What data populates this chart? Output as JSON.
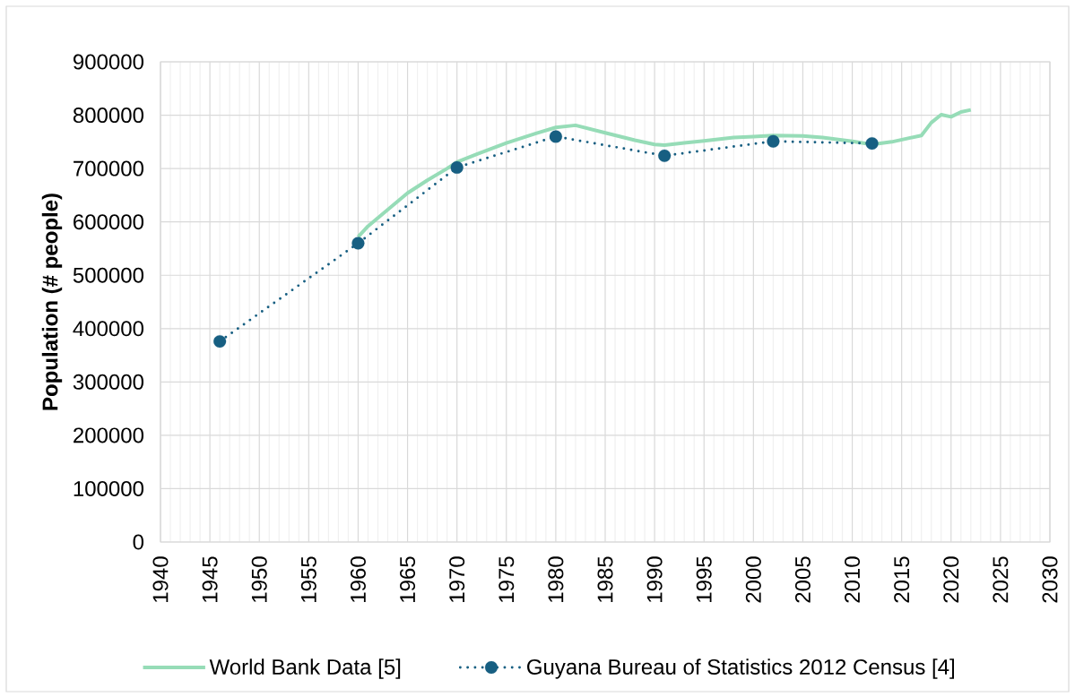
{
  "chart_data": {
    "type": "line",
    "ylabel": "Population (# people)",
    "xlim": [
      1940,
      2030
    ],
    "xticks": [
      1940,
      1945,
      1950,
      1955,
      1960,
      1965,
      1970,
      1975,
      1980,
      1985,
      1990,
      1995,
      2000,
      2005,
      2010,
      2015,
      2020,
      2025,
      2030
    ],
    "ylim": [
      0,
      900000
    ],
    "yticks": [
      0,
      100000,
      200000,
      300000,
      400000,
      500000,
      600000,
      700000,
      800000,
      900000
    ],
    "grid": true,
    "legend": "bottom",
    "series": [
      {
        "name": "World Bank Data [5]",
        "color": "#96dcb7",
        "line_style": "solid",
        "x": [
          1960,
          1961,
          1963,
          1965,
          1967,
          1969,
          1970,
          1972,
          1975,
          1978,
          1980,
          1982,
          1985,
          1988,
          1990,
          1991,
          1993,
          1995,
          1998,
          2000,
          2002,
          2005,
          2007,
          2010,
          2012,
          2014,
          2017,
          2018,
          2019,
          2020,
          2021,
          2022
        ],
        "values": [
          572000,
          592000,
          623000,
          654000,
          678000,
          700000,
          712000,
          727000,
          748000,
          766000,
          777000,
          781000,
          767000,
          753000,
          745000,
          744000,
          748000,
          752000,
          758000,
          760000,
          762000,
          761000,
          758000,
          751000,
          745000,
          750000,
          762000,
          786000,
          801000,
          797000,
          806000,
          810000
        ]
      },
      {
        "name": "Guyana Bureau of Statistics 2012 Census [4]",
        "color": "#175f82",
        "line_style": "dotted",
        "marker": "circle",
        "x": [
          1946,
          1960,
          1970,
          1980,
          1991,
          2002,
          2012
        ],
        "values": [
          376000,
          560000,
          702000,
          760000,
          724000,
          751000,
          747000
        ]
      }
    ]
  }
}
